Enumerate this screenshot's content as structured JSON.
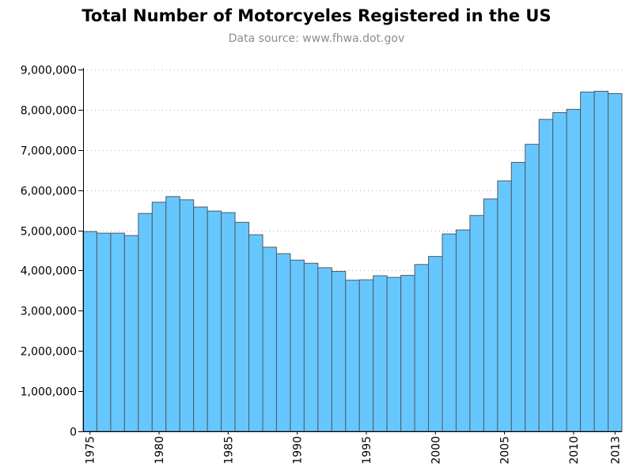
{
  "chart_data": {
    "type": "bar",
    "title": "Total Number of Motorcyeles Registered in the US",
    "subtitle": "Data source: www.fhwa.dot.gov",
    "xlabel": "",
    "ylabel": "",
    "ylim": [
      0,
      9000000
    ],
    "yticks": [
      0,
      1000000,
      2000000,
      3000000,
      4000000,
      5000000,
      6000000,
      7000000,
      8000000,
      9000000
    ],
    "ytick_labels": [
      "0",
      "1,000,000",
      "2,000,000",
      "3,000,000",
      "4,000,000",
      "5,000,000",
      "6,000,000",
      "7,000,000",
      "8,000,000",
      "9,000,000"
    ],
    "xtick_labels": [
      "1975",
      "1980",
      "1985",
      "1990",
      "1995",
      "2000",
      "2005",
      "2010",
      "2013"
    ],
    "grid": "horizontal dotted",
    "bar_color": "#66c7ff",
    "bar_edge_color": "#4f5a64",
    "categories": [
      1975,
      1976,
      1977,
      1978,
      1979,
      1980,
      1981,
      1982,
      1983,
      1984,
      1985,
      1986,
      1987,
      1988,
      1989,
      1990,
      1991,
      1992,
      1993,
      1994,
      1995,
      1996,
      1997,
      1998,
      1999,
      2000,
      2001,
      2002,
      2003,
      2004,
      2005,
      2006,
      2007,
      2008,
      2009,
      2010,
      2011,
      2012,
      2013
    ],
    "values": [
      4970000,
      4930000,
      4930000,
      4870000,
      5420000,
      5700000,
      5840000,
      5760000,
      5580000,
      5480000,
      5440000,
      5200000,
      4890000,
      4580000,
      4420000,
      4260000,
      4180000,
      4070000,
      3980000,
      3760000,
      3770000,
      3870000,
      3830000,
      3880000,
      4150000,
      4350000,
      4910000,
      5010000,
      5370000,
      5780000,
      6230000,
      6690000,
      7140000,
      7760000,
      7930000,
      8010000,
      8440000,
      8460000,
      8400000
    ]
  }
}
